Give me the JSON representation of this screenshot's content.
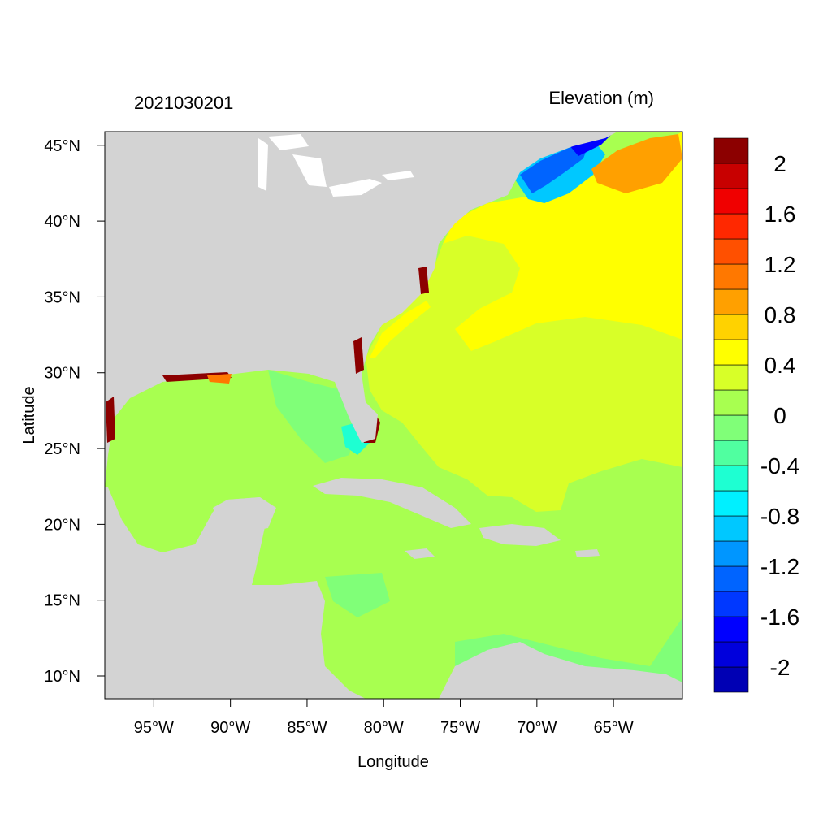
{
  "map": {
    "date_label": "2021030201",
    "variable_label": "Elevation (m)",
    "x_axis_title": "Longitude",
    "y_axis_title": "Latitude",
    "lon_range": [
      -98.2,
      -60.5
    ],
    "lat_range": [
      8.5,
      45.9
    ],
    "lon_ticks": [
      {
        "value": -95,
        "label": "95°W"
      },
      {
        "value": -90,
        "label": "90°W"
      },
      {
        "value": -85,
        "label": "85°W"
      },
      {
        "value": -80,
        "label": "80°W"
      },
      {
        "value": -75,
        "label": "75°W"
      },
      {
        "value": -70,
        "label": "70°W"
      },
      {
        "value": -65,
        "label": "65°W"
      }
    ],
    "lat_ticks": [
      {
        "value": 45,
        "label": "45°N"
      },
      {
        "value": 40,
        "label": "40°N"
      },
      {
        "value": 35,
        "label": "35°N"
      },
      {
        "value": 30,
        "label": "30°N"
      },
      {
        "value": 25,
        "label": "25°N"
      },
      {
        "value": 20,
        "label": "20°N"
      },
      {
        "value": 15,
        "label": "15°N"
      },
      {
        "value": 10,
        "label": "10°N"
      }
    ],
    "land_color": "#d3d3d3"
  },
  "colorbar": {
    "colors": [
      "#0000b4",
      "#0000dc",
      "#0000ff",
      "#0038ff",
      "#0064ff",
      "#0096ff",
      "#00c8ff",
      "#00f0ff",
      "#1effd2",
      "#50ffa0",
      "#80ff78",
      "#a8ff50",
      "#d8ff28",
      "#ffff00",
      "#ffd200",
      "#ffa000",
      "#ff7800",
      "#ff5000",
      "#ff2800",
      "#f00000",
      "#c80000",
      "#8c0000"
    ],
    "labels": [
      {
        "value": 2,
        "label": "2"
      },
      {
        "value": 1.6,
        "label": "1.6"
      },
      {
        "value": 1.2,
        "label": "1.2"
      },
      {
        "value": 0.8,
        "label": "0.8"
      },
      {
        "value": 0.4,
        "label": "0.4"
      },
      {
        "value": 0,
        "label": "0"
      },
      {
        "value": -0.4,
        "label": "-0.4"
      },
      {
        "value": -0.8,
        "label": "-0.8"
      },
      {
        "value": -1.2,
        "label": "-1.2"
      },
      {
        "value": -1.6,
        "label": "-1.6"
      },
      {
        "value": -2,
        "label": "-2"
      }
    ],
    "range": [
      -2.2,
      2.2
    ]
  }
}
